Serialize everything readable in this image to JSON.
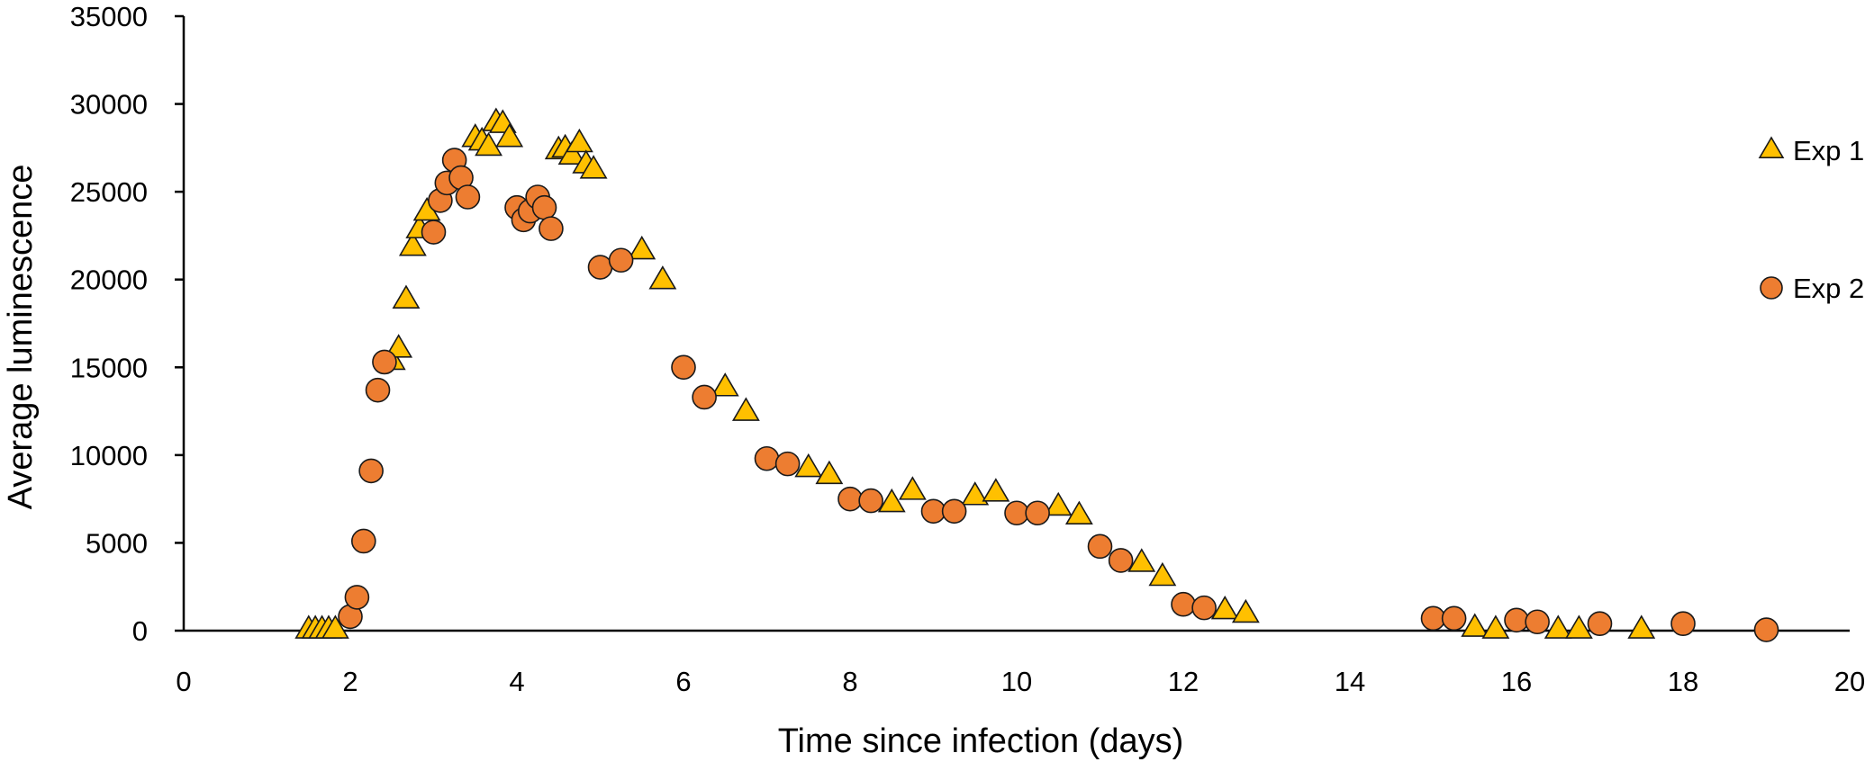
{
  "chart_data": {
    "type": "scatter",
    "title": "",
    "xlabel": "Time since infection (days)",
    "ylabel": "Average luminescence",
    "xlim": [
      0,
      20
    ],
    "ylim": [
      0,
      35000
    ],
    "xticks": [
      0,
      2,
      4,
      6,
      8,
      10,
      12,
      14,
      16,
      18,
      20
    ],
    "yticks": [
      0,
      5000,
      10000,
      15000,
      20000,
      25000,
      30000,
      35000
    ],
    "grid": false,
    "legend_position": "right",
    "series": [
      {
        "name": "Exp 1",
        "marker": "triangle",
        "color": "#FFC000",
        "edge_color": "#1a1a1a",
        "points": [
          [
            1.5,
            0
          ],
          [
            1.58,
            0
          ],
          [
            1.66,
            0
          ],
          [
            1.74,
            0
          ],
          [
            1.82,
            0
          ],
          [
            2.5,
            15300
          ],
          [
            2.58,
            16000
          ],
          [
            2.67,
            18800
          ],
          [
            2.75,
            21800
          ],
          [
            2.83,
            22800
          ],
          [
            2.92,
            23800
          ],
          [
            3.5,
            28000
          ],
          [
            3.58,
            27800
          ],
          [
            3.66,
            27500
          ],
          [
            3.75,
            28900
          ],
          [
            3.83,
            28800
          ],
          [
            3.91,
            28000
          ],
          [
            4.5,
            27300
          ],
          [
            4.58,
            27400
          ],
          [
            4.66,
            27000
          ],
          [
            4.75,
            27700
          ],
          [
            4.83,
            26500
          ],
          [
            4.92,
            26200
          ],
          [
            5.5,
            21600
          ],
          [
            5.75,
            19900
          ],
          [
            6.5,
            13800
          ],
          [
            6.75,
            12400
          ],
          [
            7.5,
            9200
          ],
          [
            7.75,
            8800
          ],
          [
            8.5,
            7200
          ],
          [
            8.75,
            7900
          ],
          [
            9.5,
            7600
          ],
          [
            9.75,
            7800
          ],
          [
            10.5,
            7000
          ],
          [
            10.75,
            6500
          ],
          [
            11.5,
            3800
          ],
          [
            11.75,
            3000
          ],
          [
            12.5,
            1100
          ],
          [
            12.75,
            900
          ],
          [
            15.5,
            100
          ],
          [
            15.75,
            0
          ],
          [
            16.5,
            0
          ],
          [
            16.75,
            0
          ],
          [
            17.5,
            0
          ]
        ]
      },
      {
        "name": "Exp 2",
        "marker": "circle",
        "color": "#ED7D31",
        "edge_color": "#1a1a1a",
        "points": [
          [
            2.0,
            800
          ],
          [
            2.08,
            1900
          ],
          [
            2.16,
            5100
          ],
          [
            2.25,
            9100
          ],
          [
            2.33,
            13700
          ],
          [
            2.41,
            15300
          ],
          [
            3.0,
            22700
          ],
          [
            3.08,
            24500
          ],
          [
            3.16,
            25500
          ],
          [
            3.25,
            26800
          ],
          [
            3.33,
            25800
          ],
          [
            3.41,
            24700
          ],
          [
            4.0,
            24100
          ],
          [
            4.08,
            23400
          ],
          [
            4.16,
            23900
          ],
          [
            4.25,
            24700
          ],
          [
            4.33,
            24100
          ],
          [
            4.41,
            22900
          ],
          [
            5.0,
            20700
          ],
          [
            5.25,
            21100
          ],
          [
            6.0,
            15000
          ],
          [
            6.25,
            13300
          ],
          [
            7.0,
            9800
          ],
          [
            7.25,
            9500
          ],
          [
            8.0,
            7500
          ],
          [
            8.25,
            7400
          ],
          [
            9.0,
            6800
          ],
          [
            9.25,
            6800
          ],
          [
            10.0,
            6700
          ],
          [
            10.25,
            6700
          ],
          [
            11.0,
            4800
          ],
          [
            11.25,
            4000
          ],
          [
            12.0,
            1500
          ],
          [
            12.25,
            1300
          ],
          [
            15.0,
            700
          ],
          [
            15.25,
            700
          ],
          [
            16.0,
            600
          ],
          [
            16.25,
            500
          ],
          [
            17.0,
            400
          ],
          [
            18.0,
            400
          ],
          [
            19.0,
            50
          ]
        ]
      }
    ]
  }
}
